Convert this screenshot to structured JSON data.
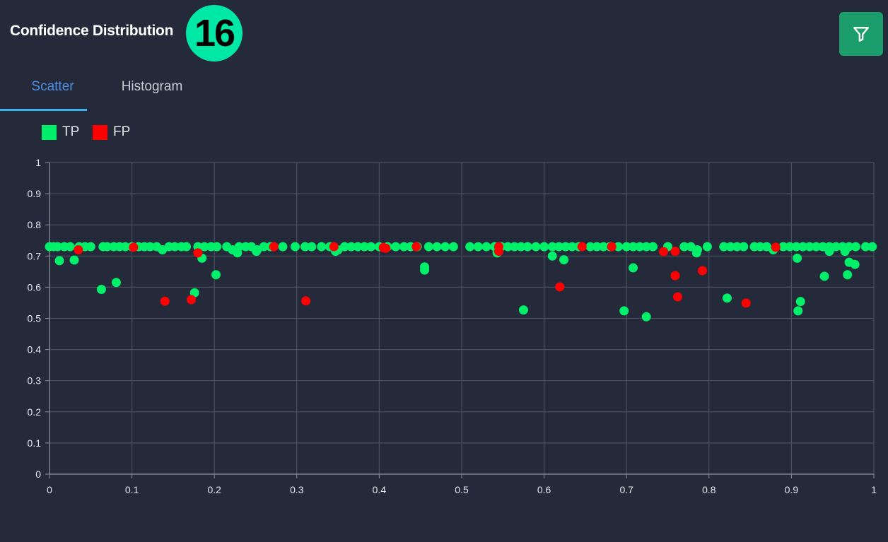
{
  "header": {
    "title": "Confidence Distribution",
    "badge": "16",
    "filter_icon": "filter-icon"
  },
  "tabs": [
    {
      "label": "Scatter",
      "active": true
    },
    {
      "label": "Histogram",
      "active": false
    }
  ],
  "legend": [
    {
      "label": "TP",
      "color": "#00f06a"
    },
    {
      "label": "FP",
      "color": "#ff0000"
    }
  ],
  "chart_data": {
    "type": "scatter",
    "xlim": [
      0,
      1
    ],
    "ylim": [
      0,
      1
    ],
    "x_ticks": [
      "0",
      "0.1",
      "0.2",
      "0.3",
      "0.4",
      "0.5",
      "0.6",
      "0.7",
      "0.8",
      "0.9",
      "1"
    ],
    "y_ticks": [
      "0",
      "0.1",
      "0.2",
      "0.3",
      "0.4",
      "0.5",
      "0.6",
      "0.7",
      "0.8",
      "0.9",
      "1"
    ],
    "grid": true,
    "legend_position": "top-left",
    "series": [
      {
        "name": "TP",
        "color": "#00f06a",
        "points": [
          [
            0.0,
            0.73
          ],
          [
            0.005,
            0.73
          ],
          [
            0.01,
            0.73
          ],
          [
            0.018,
            0.73
          ],
          [
            0.025,
            0.73
          ],
          [
            0.036,
            0.73
          ],
          [
            0.043,
            0.73
          ],
          [
            0.05,
            0.73
          ],
          [
            0.065,
            0.73
          ],
          [
            0.07,
            0.73
          ],
          [
            0.078,
            0.73
          ],
          [
            0.085,
            0.73
          ],
          [
            0.092,
            0.73
          ],
          [
            0.1,
            0.73
          ],
          [
            0.108,
            0.73
          ],
          [
            0.115,
            0.73
          ],
          [
            0.122,
            0.73
          ],
          [
            0.13,
            0.73
          ],
          [
            0.137,
            0.72
          ],
          [
            0.145,
            0.73
          ],
          [
            0.152,
            0.73
          ],
          [
            0.16,
            0.73
          ],
          [
            0.166,
            0.73
          ],
          [
            0.18,
            0.73
          ],
          [
            0.188,
            0.73
          ],
          [
            0.196,
            0.73
          ],
          [
            0.203,
            0.73
          ],
          [
            0.215,
            0.73
          ],
          [
            0.222,
            0.72
          ],
          [
            0.23,
            0.73
          ],
          [
            0.238,
            0.73
          ],
          [
            0.245,
            0.73
          ],
          [
            0.252,
            0.72
          ],
          [
            0.26,
            0.73
          ],
          [
            0.268,
            0.73
          ],
          [
            0.283,
            0.73
          ],
          [
            0.298,
            0.73
          ],
          [
            0.31,
            0.73
          ],
          [
            0.318,
            0.73
          ],
          [
            0.33,
            0.73
          ],
          [
            0.34,
            0.73
          ],
          [
            0.35,
            0.72
          ],
          [
            0.358,
            0.73
          ],
          [
            0.366,
            0.73
          ],
          [
            0.374,
            0.73
          ],
          [
            0.382,
            0.73
          ],
          [
            0.39,
            0.73
          ],
          [
            0.4,
            0.73
          ],
          [
            0.41,
            0.73
          ],
          [
            0.42,
            0.73
          ],
          [
            0.43,
            0.73
          ],
          [
            0.438,
            0.73
          ],
          [
            0.446,
            0.73
          ],
          [
            0.46,
            0.73
          ],
          [
            0.47,
            0.73
          ],
          [
            0.48,
            0.73
          ],
          [
            0.49,
            0.73
          ],
          [
            0.51,
            0.73
          ],
          [
            0.52,
            0.73
          ],
          [
            0.53,
            0.73
          ],
          [
            0.54,
            0.73
          ],
          [
            0.548,
            0.73
          ],
          [
            0.556,
            0.73
          ],
          [
            0.564,
            0.73
          ],
          [
            0.572,
            0.73
          ],
          [
            0.58,
            0.73
          ],
          [
            0.59,
            0.73
          ],
          [
            0.6,
            0.73
          ],
          [
            0.61,
            0.73
          ],
          [
            0.618,
            0.73
          ],
          [
            0.626,
            0.73
          ],
          [
            0.634,
            0.73
          ],
          [
            0.642,
            0.73
          ],
          [
            0.656,
            0.73
          ],
          [
            0.664,
            0.73
          ],
          [
            0.672,
            0.73
          ],
          [
            0.68,
            0.73
          ],
          [
            0.69,
            0.73
          ],
          [
            0.7,
            0.73
          ],
          [
            0.708,
            0.73
          ],
          [
            0.716,
            0.73
          ],
          [
            0.724,
            0.73
          ],
          [
            0.732,
            0.73
          ],
          [
            0.75,
            0.73
          ],
          [
            0.77,
            0.73
          ],
          [
            0.778,
            0.73
          ],
          [
            0.786,
            0.72
          ],
          [
            0.798,
            0.73
          ],
          [
            0.818,
            0.73
          ],
          [
            0.826,
            0.73
          ],
          [
            0.834,
            0.73
          ],
          [
            0.842,
            0.73
          ],
          [
            0.855,
            0.73
          ],
          [
            0.862,
            0.73
          ],
          [
            0.87,
            0.73
          ],
          [
            0.878,
            0.72
          ],
          [
            0.89,
            0.73
          ],
          [
            0.898,
            0.73
          ],
          [
            0.906,
            0.73
          ],
          [
            0.914,
            0.73
          ],
          [
            0.922,
            0.73
          ],
          [
            0.93,
            0.73
          ],
          [
            0.938,
            0.73
          ],
          [
            0.946,
            0.73
          ],
          [
            0.954,
            0.73
          ],
          [
            0.962,
            0.73
          ],
          [
            0.97,
            0.73
          ],
          [
            0.978,
            0.73
          ],
          [
            0.99,
            0.73
          ],
          [
            0.998,
            0.73
          ],
          [
            0.012,
            0.685
          ],
          [
            0.03,
            0.687
          ],
          [
            0.063,
            0.593
          ],
          [
            0.081,
            0.615
          ],
          [
            0.176,
            0.582
          ],
          [
            0.185,
            0.693
          ],
          [
            0.202,
            0.64
          ],
          [
            0.228,
            0.71
          ],
          [
            0.251,
            0.715
          ],
          [
            0.347,
            0.715
          ],
          [
            0.455,
            0.655
          ],
          [
            0.455,
            0.665
          ],
          [
            0.543,
            0.71
          ],
          [
            0.575,
            0.527
          ],
          [
            0.61,
            0.7
          ],
          [
            0.624,
            0.688
          ],
          [
            0.697,
            0.524
          ],
          [
            0.708,
            0.662
          ],
          [
            0.724,
            0.505
          ],
          [
            0.785,
            0.71
          ],
          [
            0.822,
            0.565
          ],
          [
            0.907,
            0.693
          ],
          [
            0.908,
            0.524
          ],
          [
            0.911,
            0.554
          ],
          [
            0.94,
            0.635
          ],
          [
            0.968,
            0.64
          ],
          [
            0.97,
            0.68
          ],
          [
            0.977,
            0.673
          ],
          [
            0.965,
            0.715
          ],
          [
            0.946,
            0.715
          ]
        ]
      },
      {
        "name": "FP",
        "color": "#ff0000",
        "points": [
          [
            0.035,
            0.72
          ],
          [
            0.102,
            0.728
          ],
          [
            0.14,
            0.555
          ],
          [
            0.172,
            0.56
          ],
          [
            0.18,
            0.71
          ],
          [
            0.272,
            0.73
          ],
          [
            0.311,
            0.556
          ],
          [
            0.345,
            0.73
          ],
          [
            0.405,
            0.727
          ],
          [
            0.408,
            0.725
          ],
          [
            0.445,
            0.73
          ],
          [
            0.545,
            0.73
          ],
          [
            0.545,
            0.715
          ],
          [
            0.619,
            0.601
          ],
          [
            0.646,
            0.73
          ],
          [
            0.682,
            0.73
          ],
          [
            0.745,
            0.714
          ],
          [
            0.759,
            0.715
          ],
          [
            0.759,
            0.637
          ],
          [
            0.762,
            0.569
          ],
          [
            0.792,
            0.653
          ],
          [
            0.845,
            0.549
          ],
          [
            0.881,
            0.728
          ]
        ]
      }
    ]
  }
}
